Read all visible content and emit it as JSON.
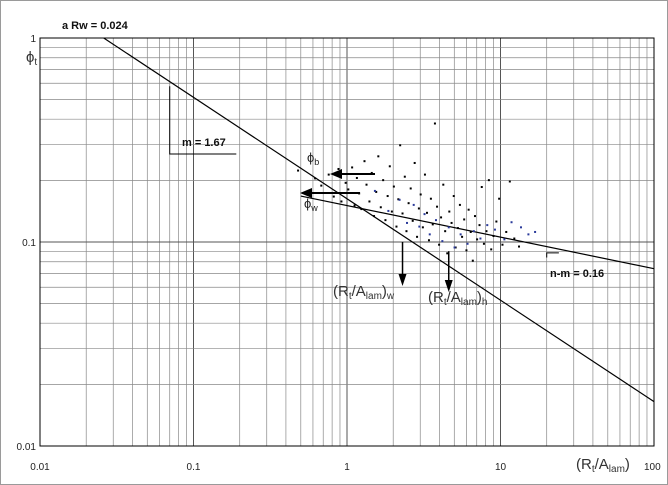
{
  "chart_data": {
    "type": "scatter",
    "title": "",
    "x_scale": "log",
    "y_scale": "log",
    "xlim": [
      0.01,
      100
    ],
    "ylim": [
      0.01,
      1
    ],
    "grid": true,
    "x_ticks": [
      "0.01",
      "0.1",
      "1",
      "10",
      "100"
    ],
    "y_ticks": [
      "0.01",
      "0.1",
      "1"
    ],
    "ylabel": "ϕ",
    "ylabel_sub": "t",
    "xlabel": {
      "a": "(R",
      "a_sub": "t",
      "b": "/A",
      "b_sub": "lam",
      "c": ")"
    },
    "annotations": {
      "a_rw": "a Rw = 0.024",
      "m": "m = 1.67",
      "n_m": "n-m = 0.16",
      "phi_b": {
        "main": "ϕ",
        "sub": "b"
      },
      "phi_w": {
        "main": "ϕ",
        "sub": "w"
      },
      "rw_label": {
        "a": "(R",
        "a_sub": "t",
        "b": "/A",
        "b_sub": "lam",
        "c": ")",
        "c_sub": "w"
      },
      "rt_label": {
        "a": "(R",
        "a_sub": "t",
        "b": "/A",
        "b_sub": "lam",
        "c": ")",
        "c_sub": "h"
      }
    },
    "lines": [
      {
        "name": "",
        "points": [
          [
            0.026,
            1.0
          ],
          [
            100,
            0.0165
          ]
        ]
      },
      {
        "name": "",
        "points": [
          [
            0.5,
            0.168
          ],
          [
            100,
            0.074
          ]
        ]
      }
    ],
    "series": [
      {
        "name": "",
        "color": "#000000",
        "points": [
          [
            0.48,
            0.224
          ],
          [
            0.62,
            0.205
          ],
          [
            0.68,
            0.189
          ],
          [
            0.76,
            0.214
          ],
          [
            0.82,
            0.167
          ],
          [
            0.88,
            0.228
          ],
          [
            0.92,
            0.158
          ],
          [
            0.98,
            0.195
          ],
          [
            1.02,
            0.181
          ],
          [
            1.08,
            0.232
          ],
          [
            1.12,
            0.151
          ],
          [
            1.16,
            0.206
          ],
          [
            1.2,
            0.173
          ],
          [
            1.24,
            0.145
          ],
          [
            1.3,
            0.249
          ],
          [
            1.34,
            0.191
          ],
          [
            1.4,
            0.158
          ],
          [
            1.45,
            0.218
          ],
          [
            1.5,
            0.134
          ],
          [
            1.55,
            0.176
          ],
          [
            1.6,
            0.263
          ],
          [
            1.66,
            0.148
          ],
          [
            1.72,
            0.201
          ],
          [
            1.78,
            0.128
          ],
          [
            1.84,
            0.168
          ],
          [
            1.9,
            0.235
          ],
          [
            1.96,
            0.141
          ],
          [
            2.02,
            0.187
          ],
          [
            2.1,
            0.119
          ],
          [
            2.16,
            0.162
          ],
          [
            2.22,
            0.298
          ],
          [
            2.3,
            0.138
          ],
          [
            2.38,
            0.209
          ],
          [
            2.44,
            0.113
          ],
          [
            2.52,
            0.155
          ],
          [
            2.6,
            0.183
          ],
          [
            2.68,
            0.127
          ],
          [
            2.76,
            0.244
          ],
          [
            2.86,
            0.106
          ],
          [
            2.94,
            0.146
          ],
          [
            3.02,
            0.171
          ],
          [
            3.12,
            0.118
          ],
          [
            3.22,
            0.214
          ],
          [
            3.32,
            0.139
          ],
          [
            3.42,
            0.102
          ],
          [
            3.52,
            0.163
          ],
          [
            3.62,
            0.122
          ],
          [
            3.74,
            0.381
          ],
          [
            3.86,
            0.149
          ],
          [
            3.98,
            0.097
          ],
          [
            4.1,
            0.132
          ],
          [
            4.24,
            0.191
          ],
          [
            4.36,
            0.113
          ],
          [
            4.5,
            0.088
          ],
          [
            4.64,
            0.141
          ],
          [
            4.8,
            0.124
          ],
          [
            4.96,
            0.168
          ],
          [
            5.1,
            0.094
          ],
          [
            5.28,
            0.117
          ],
          [
            5.44,
            0.152
          ],
          [
            5.62,
            0.106
          ],
          [
            5.8,
            0.129
          ],
          [
            6.0,
            0.091
          ],
          [
            6.2,
            0.144
          ],
          [
            6.4,
            0.112
          ],
          [
            6.6,
            0.081
          ],
          [
            6.82,
            0.134
          ],
          [
            7.04,
            0.103
          ],
          [
            7.3,
            0.121
          ],
          [
            7.55,
            0.186
          ],
          [
            7.8,
            0.098
          ],
          [
            8.1,
            0.113
          ],
          [
            8.4,
            0.201
          ],
          [
            8.7,
            0.092
          ],
          [
            9.0,
            0.107
          ],
          [
            9.4,
            0.126
          ],
          [
            9.8,
            0.163
          ],
          [
            10.3,
            0.097
          ],
          [
            10.9,
            0.112
          ],
          [
            11.5,
            0.198
          ],
          [
            12.3,
            0.104
          ],
          [
            13.2,
            0.095
          ]
        ]
      },
      {
        "name": "",
        "color": "#2a3a9a",
        "points": [
          [
            1.52,
            0.178
          ],
          [
            1.86,
            0.142
          ],
          [
            2.2,
            0.161
          ],
          [
            2.46,
            0.124
          ],
          [
            2.72,
            0.152
          ],
          [
            2.96,
            0.119
          ],
          [
            3.2,
            0.137
          ],
          [
            3.46,
            0.109
          ],
          [
            3.8,
            0.128
          ],
          [
            4.18,
            0.101
          ],
          [
            4.6,
            0.118
          ],
          [
            5.02,
            0.094
          ],
          [
            5.5,
            0.109
          ],
          [
            6.1,
            0.098
          ],
          [
            6.7,
            0.113
          ],
          [
            7.4,
            0.104
          ],
          [
            8.2,
            0.121
          ],
          [
            9.2,
            0.115
          ],
          [
            10.6,
            0.103
          ],
          [
            11.8,
            0.125
          ],
          [
            13.6,
            0.118
          ],
          [
            15.2,
            0.109
          ],
          [
            16.8,
            0.112
          ]
        ]
      }
    ]
  }
}
